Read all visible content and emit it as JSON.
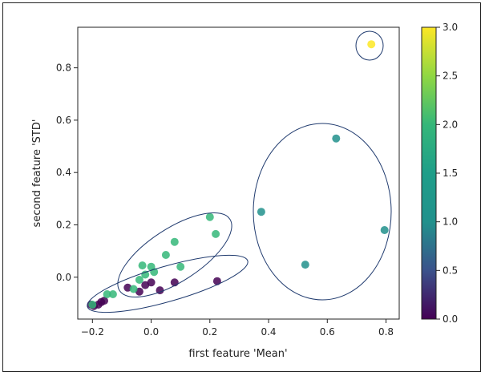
{
  "chart_data": {
    "type": "scatter",
    "xlabel": "first feature 'Mean'",
    "ylabel": "second feature 'STD'",
    "xlim": [
      -0.25,
      0.845
    ],
    "ylim": [
      -0.16,
      0.955
    ],
    "xticks": [
      -0.2,
      0.0,
      0.2,
      0.4,
      0.6,
      0.8
    ],
    "xtick_labels": [
      "−0.2",
      "0.0",
      "0.2",
      "0.4",
      "0.6",
      "0.8"
    ],
    "yticks": [
      0.0,
      0.2,
      0.4,
      0.6,
      0.8
    ],
    "ytick_labels": [
      "0.0",
      "0.2",
      "0.4",
      "0.6",
      "0.8"
    ],
    "grid": false,
    "colormap": "viridis",
    "colorbar": {
      "range": [
        0.0,
        3.0
      ],
      "ticks": [
        0.0,
        0.5,
        1.0,
        1.5,
        2.0,
        2.5,
        3.0
      ],
      "tick_labels": [
        "0.0",
        "0.5",
        "1.0",
        "1.5",
        "2.0",
        "2.5",
        "3.0"
      ]
    },
    "points": [
      {
        "x": -0.205,
        "y": -0.105,
        "c": 0
      },
      {
        "x": -0.195,
        "y": -0.11,
        "c": 0
      },
      {
        "x": -0.18,
        "y": -0.105,
        "c": 0
      },
      {
        "x": -0.17,
        "y": -0.095,
        "c": 0
      },
      {
        "x": -0.16,
        "y": -0.09,
        "c": 0
      },
      {
        "x": -0.08,
        "y": -0.04,
        "c": 0
      },
      {
        "x": -0.04,
        "y": -0.055,
        "c": 0
      },
      {
        "x": -0.02,
        "y": -0.03,
        "c": 0
      },
      {
        "x": 0.0,
        "y": -0.02,
        "c": 0
      },
      {
        "x": 0.03,
        "y": -0.05,
        "c": 0
      },
      {
        "x": 0.08,
        "y": -0.02,
        "c": 0
      },
      {
        "x": 0.225,
        "y": -0.015,
        "c": 0
      },
      {
        "x": -0.2,
        "y": -0.105,
        "c": 2
      },
      {
        "x": -0.15,
        "y": -0.065,
        "c": 2
      },
      {
        "x": -0.13,
        "y": -0.065,
        "c": 2
      },
      {
        "x": -0.06,
        "y": -0.045,
        "c": 2
      },
      {
        "x": -0.04,
        "y": -0.01,
        "c": 2
      },
      {
        "x": -0.02,
        "y": 0.01,
        "c": 2
      },
      {
        "x": -0.03,
        "y": 0.045,
        "c": 2
      },
      {
        "x": 0.0,
        "y": 0.04,
        "c": 2
      },
      {
        "x": 0.01,
        "y": 0.02,
        "c": 2
      },
      {
        "x": 0.05,
        "y": 0.085,
        "c": 2
      },
      {
        "x": 0.08,
        "y": 0.135,
        "c": 2
      },
      {
        "x": 0.1,
        "y": 0.04,
        "c": 2
      },
      {
        "x": 0.2,
        "y": 0.23,
        "c": 2
      },
      {
        "x": 0.22,
        "y": 0.165,
        "c": 2
      },
      {
        "x": 0.375,
        "y": 0.25,
        "c": 1
      },
      {
        "x": 0.525,
        "y": 0.048,
        "c": 1
      },
      {
        "x": 0.63,
        "y": 0.53,
        "c": 1
      },
      {
        "x": 0.795,
        "y": 0.18,
        "c": 1
      },
      {
        "x": 0.75,
        "y": 0.89,
        "c": 3
      }
    ]
  }
}
